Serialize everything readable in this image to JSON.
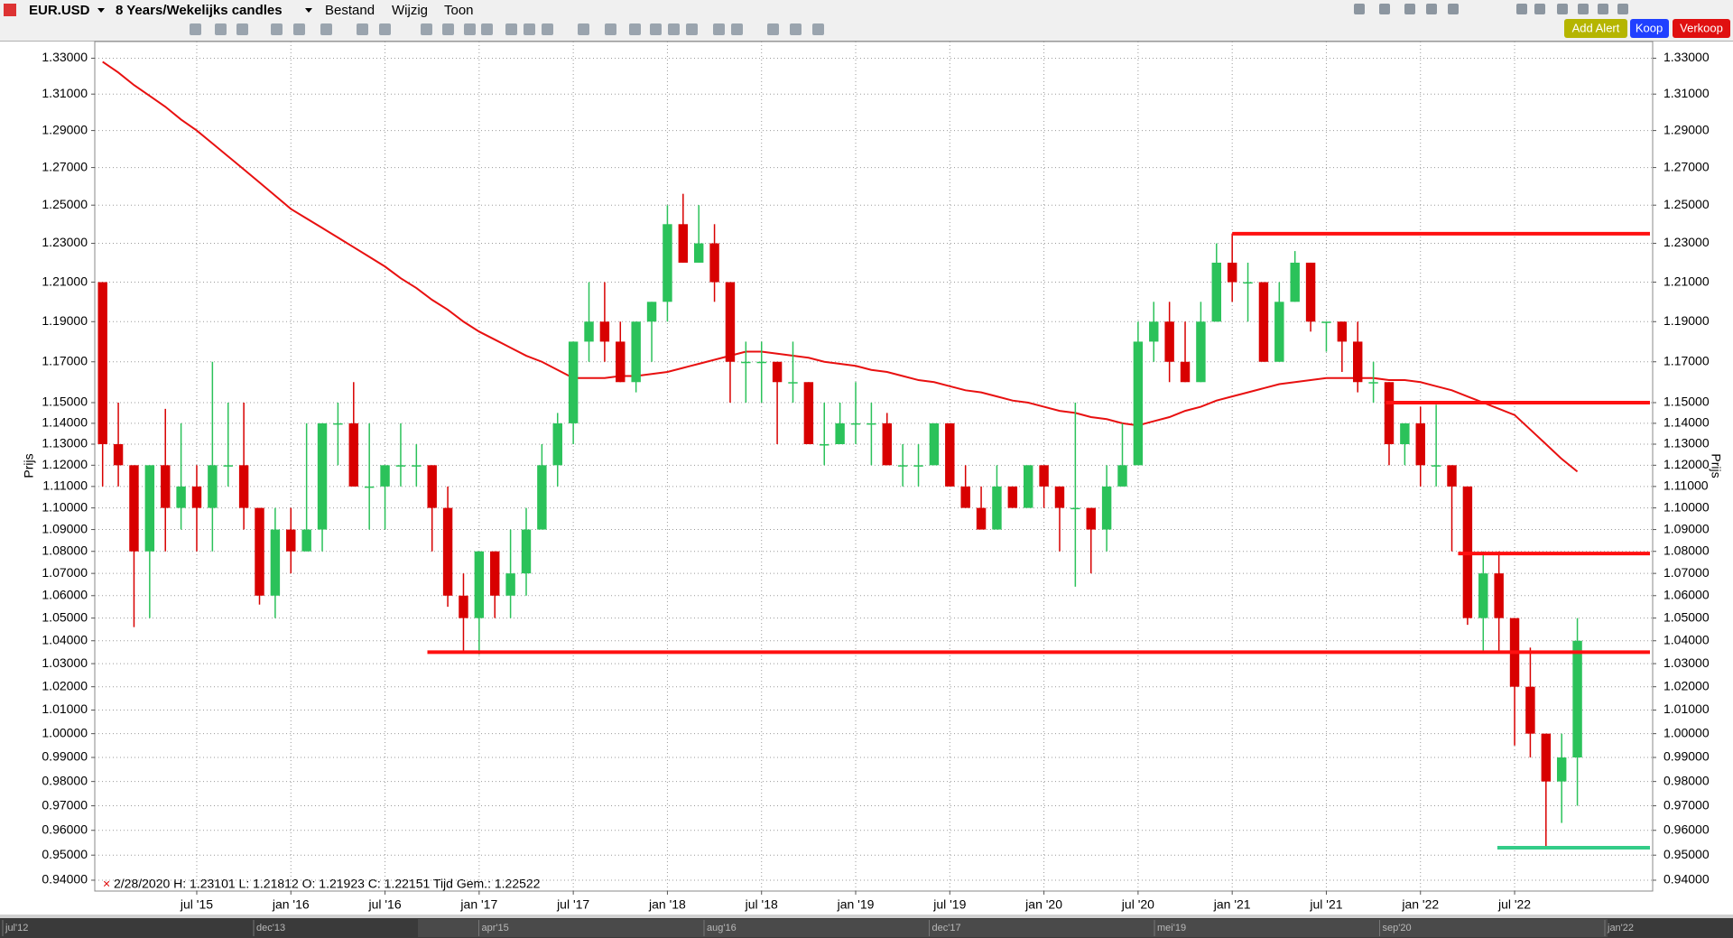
{
  "toolbar": {
    "symbol": "EUR.USD",
    "period": "8 Years/Wekelijks candles",
    "menus": [
      "Bestand",
      "Wijzig",
      "Toon"
    ],
    "buttons": [
      "Add Alert",
      "Koop",
      "Verkoop"
    ]
  },
  "chart_data": {
    "type": "candlestick",
    "y_label": "Prijs",
    "log_scale": true,
    "grid": true,
    "info": "2/28/2020  H: 1.23101   L: 1.21812   O: 1.21923   C: 1.22151   Tijd Gem.: 1.22522",
    "up_color": "#2bc25a",
    "down_color": "#d80000",
    "categories": [
      null,
      null,
      null,
      null,
      null,
      null,
      "jul '15",
      null,
      null,
      null,
      null,
      null,
      "jan '16",
      null,
      null,
      null,
      null,
      null,
      "jul '16",
      null,
      null,
      null,
      null,
      null,
      "jan '17",
      null,
      null,
      null,
      null,
      null,
      "jul '17",
      null,
      null,
      null,
      null,
      null,
      "jan '18",
      null,
      null,
      null,
      null,
      null,
      "jul '18",
      null,
      null,
      null,
      null,
      null,
      "jan '19",
      null,
      null,
      null,
      null,
      null,
      "jul '19",
      null,
      null,
      null,
      null,
      null,
      "jan '20",
      null,
      null,
      null,
      null,
      null,
      "jul '20",
      null,
      null,
      null,
      null,
      null,
      "jan '21",
      null,
      null,
      null,
      null,
      null,
      "jul '21",
      null,
      null,
      null,
      null,
      null,
      "jan '22",
      null,
      null,
      null,
      null,
      null,
      "jul '22",
      null,
      null,
      null,
      null
    ],
    "open": [
      1.21,
      1.13,
      1.12,
      1.08,
      1.12,
      1.1,
      1.11,
      1.1,
      1.12,
      1.12,
      1.1,
      1.06,
      1.09,
      1.08,
      1.09,
      1.14,
      1.14,
      1.11,
      1.11,
      1.12,
      1.12,
      1.12,
      1.1,
      1.06,
      1.05,
      1.08,
      1.06,
      1.07,
      1.09,
      1.12,
      1.14,
      1.18,
      1.19,
      1.18,
      1.16,
      1.19,
      1.2,
      1.24,
      1.22,
      1.23,
      1.21,
      1.17,
      1.17,
      1.17,
      1.16,
      1.16,
      1.13,
      1.13,
      1.14,
      1.14,
      1.14,
      1.12,
      1.12,
      1.12,
      1.14,
      1.11,
      1.1,
      1.09,
      1.11,
      1.1,
      1.12,
      1.11,
      1.1,
      1.1,
      1.09,
      1.11,
      1.12,
      1.18,
      1.19,
      1.17,
      1.16,
      1.19,
      1.22,
      1.21,
      1.21,
      1.17,
      1.2,
      1.22,
      1.19,
      1.19,
      1.18,
      1.16,
      1.16,
      1.13,
      1.14,
      1.12,
      1.12,
      1.11,
      1.05,
      1.07,
      1.05,
      1.02,
      1.0,
      0.98,
      0.99
    ],
    "high": [
      1.21,
      1.15,
      1.12,
      1.12,
      1.147,
      1.14,
      1.12,
      1.17,
      1.15,
      1.15,
      1.1,
      1.1,
      1.1,
      1.14,
      1.14,
      1.15,
      1.16,
      1.14,
      1.12,
      1.14,
      1.13,
      1.12,
      1.11,
      1.07,
      1.08,
      1.08,
      1.09,
      1.1,
      1.13,
      1.145,
      1.18,
      1.21,
      1.21,
      1.19,
      1.19,
      1.2,
      1.25,
      1.256,
      1.25,
      1.24,
      1.21,
      1.18,
      1.18,
      1.17,
      1.18,
      1.16,
      1.15,
      1.15,
      1.16,
      1.15,
      1.145,
      1.13,
      1.13,
      1.14,
      1.14,
      1.12,
      1.11,
      1.12,
      1.11,
      1.12,
      1.12,
      1.11,
      1.15,
      1.1,
      1.12,
      1.14,
      1.19,
      1.2,
      1.2,
      1.19,
      1.2,
      1.23,
      1.235,
      1.22,
      1.21,
      1.21,
      1.226,
      1.22,
      1.19,
      1.19,
      1.19,
      1.17,
      1.16,
      1.14,
      1.148,
      1.149,
      1.12,
      1.11,
      1.08,
      1.08,
      1.05,
      1.037,
      1.0,
      1.0,
      1.05
    ],
    "low": [
      1.11,
      1.11,
      1.046,
      1.05,
      1.08,
      1.09,
      1.08,
      1.08,
      1.11,
      1.09,
      1.056,
      1.05,
      1.07,
      1.08,
      1.08,
      1.12,
      1.11,
      1.09,
      1.09,
      1.11,
      1.11,
      1.08,
      1.055,
      1.035,
      1.034,
      1.05,
      1.05,
      1.06,
      1.09,
      1.11,
      1.13,
      1.17,
      1.17,
      1.16,
      1.155,
      1.17,
      1.19,
      1.22,
      1.22,
      1.2,
      1.15,
      1.15,
      1.15,
      1.13,
      1.15,
      1.13,
      1.12,
      1.13,
      1.13,
      1.12,
      1.12,
      1.11,
      1.11,
      1.12,
      1.11,
      1.1,
      1.09,
      1.09,
      1.1,
      1.1,
      1.1,
      1.08,
      1.064,
      1.07,
      1.08,
      1.11,
      1.12,
      1.17,
      1.16,
      1.16,
      1.16,
      1.19,
      1.2,
      1.19,
      1.17,
      1.17,
      1.2,
      1.185,
      1.175,
      1.165,
      1.155,
      1.15,
      1.12,
      1.12,
      1.11,
      1.11,
      1.08,
      1.047,
      1.035,
      1.035,
      0.995,
      0.99,
      0.953,
      0.963,
      0.97
    ],
    "close": [
      1.13,
      1.12,
      1.08,
      1.12,
      1.1,
      1.11,
      1.1,
      1.12,
      1.12,
      1.1,
      1.06,
      1.09,
      1.08,
      1.09,
      1.14,
      1.14,
      1.11,
      1.11,
      1.12,
      1.12,
      1.12,
      1.1,
      1.06,
      1.05,
      1.08,
      1.06,
      1.07,
      1.09,
      1.12,
      1.14,
      1.18,
      1.19,
      1.18,
      1.16,
      1.19,
      1.2,
      1.24,
      1.22,
      1.23,
      1.21,
      1.17,
      1.17,
      1.17,
      1.16,
      1.16,
      1.13,
      1.13,
      1.14,
      1.14,
      1.14,
      1.12,
      1.12,
      1.12,
      1.14,
      1.11,
      1.1,
      1.09,
      1.11,
      1.1,
      1.12,
      1.11,
      1.1,
      1.1,
      1.09,
      1.11,
      1.12,
      1.18,
      1.19,
      1.17,
      1.16,
      1.19,
      1.22,
      1.21,
      1.21,
      1.17,
      1.2,
      1.22,
      1.19,
      1.19,
      1.18,
      1.16,
      1.16,
      1.13,
      1.14,
      1.12,
      1.12,
      1.11,
      1.05,
      1.07,
      1.05,
      1.02,
      1.0,
      0.98,
      0.99,
      1.04
    ],
    "moving_average": {
      "color": "#e81010",
      "values": [
        1.328,
        1.322,
        1.315,
        1.309,
        1.303,
        1.296,
        1.29,
        1.283,
        1.276,
        1.269,
        1.262,
        1.255,
        1.248,
        1.243,
        1.238,
        1.233,
        1.228,
        1.223,
        1.218,
        1.212,
        1.207,
        1.201,
        1.196,
        1.19,
        1.185,
        1.181,
        1.177,
        1.173,
        1.17,
        1.166,
        1.162,
        1.162,
        1.162,
        1.163,
        1.163,
        1.164,
        1.165,
        1.167,
        1.169,
        1.171,
        1.173,
        1.175,
        1.175,
        1.174,
        1.173,
        1.172,
        1.17,
        1.169,
        1.168,
        1.166,
        1.165,
        1.163,
        1.161,
        1.16,
        1.158,
        1.156,
        1.155,
        1.153,
        1.151,
        1.15,
        1.148,
        1.146,
        1.145,
        1.143,
        1.142,
        1.14,
        1.139,
        1.141,
        1.143,
        1.146,
        1.148,
        1.151,
        1.153,
        1.155,
        1.157,
        1.159,
        1.16,
        1.161,
        1.162,
        1.162,
        1.162,
        1.162,
        1.161,
        1.161,
        1.16,
        1.158,
        1.156,
        1.153,
        1.15,
        1.147,
        1.144,
        1.137,
        1.13,
        1.123,
        1.117
      ]
    },
    "levels": [
      {
        "value": 1.235,
        "from": 72,
        "color": "#ff1010"
      },
      {
        "value": 1.15,
        "from": 81.8,
        "color": "#ff1010"
      },
      {
        "value": 1.079,
        "from": 86.4,
        "color": "#ff1010"
      },
      {
        "value": 1.035,
        "from": 20.7,
        "color": "#ff1010"
      },
      {
        "value": 0.953,
        "from": 88.9,
        "color": "#33cc88"
      }
    ],
    "ylim": [
      0.9357,
      1.3394
    ],
    "yticks": [
      {
        "value": 1.33,
        "label": "1.33000"
      },
      {
        "value": 1.31,
        "label": "1.31000"
      },
      {
        "value": 1.29,
        "label": "1.29000"
      },
      {
        "value": 1.27,
        "label": "1.27000"
      },
      {
        "value": 1.25,
        "label": "1.25000"
      },
      {
        "value": 1.23,
        "label": "1.23000"
      },
      {
        "value": 1.21,
        "label": "1.21000"
      },
      {
        "value": 1.19,
        "label": "1.19000"
      },
      {
        "value": 1.17,
        "label": "1.17000"
      },
      {
        "value": 1.15,
        "label": "1.15000"
      },
      {
        "value": 1.14,
        "label": "1.14000"
      },
      {
        "value": 1.13,
        "label": "1.13000"
      },
      {
        "value": 1.12,
        "label": "1.12000"
      },
      {
        "value": 1.11,
        "label": "1.11000"
      },
      {
        "value": 1.1,
        "label": "1.10000"
      },
      {
        "value": 1.09,
        "label": "1.09000"
      },
      {
        "value": 1.08,
        "label": "1.08000"
      },
      {
        "value": 1.07,
        "label": "1.07000"
      },
      {
        "value": 1.06,
        "label": "1.06000"
      },
      {
        "value": 1.05,
        "label": "1.05000"
      },
      {
        "value": 1.04,
        "label": "1.04000"
      },
      {
        "value": 1.03,
        "label": "1.03000"
      },
      {
        "value": 1.02,
        "label": "1.02000"
      },
      {
        "value": 1.01,
        "label": "1.01000"
      },
      {
        "value": 1.0,
        "label": "1.00000"
      },
      {
        "value": 0.99,
        "label": "0.99000"
      },
      {
        "value": 0.98,
        "label": "0.98000"
      },
      {
        "value": 0.97,
        "label": "0.97000"
      },
      {
        "value": 0.96,
        "label": "0.96000"
      },
      {
        "value": 0.95,
        "label": "0.95000"
      },
      {
        "value": 0.94,
        "label": "0.94000"
      }
    ],
    "navigator": [
      "jul'12",
      "dec'13",
      "apr'15",
      "aug'16",
      "dec'17",
      "mei'19",
      "sep'20",
      "jan'22"
    ]
  }
}
